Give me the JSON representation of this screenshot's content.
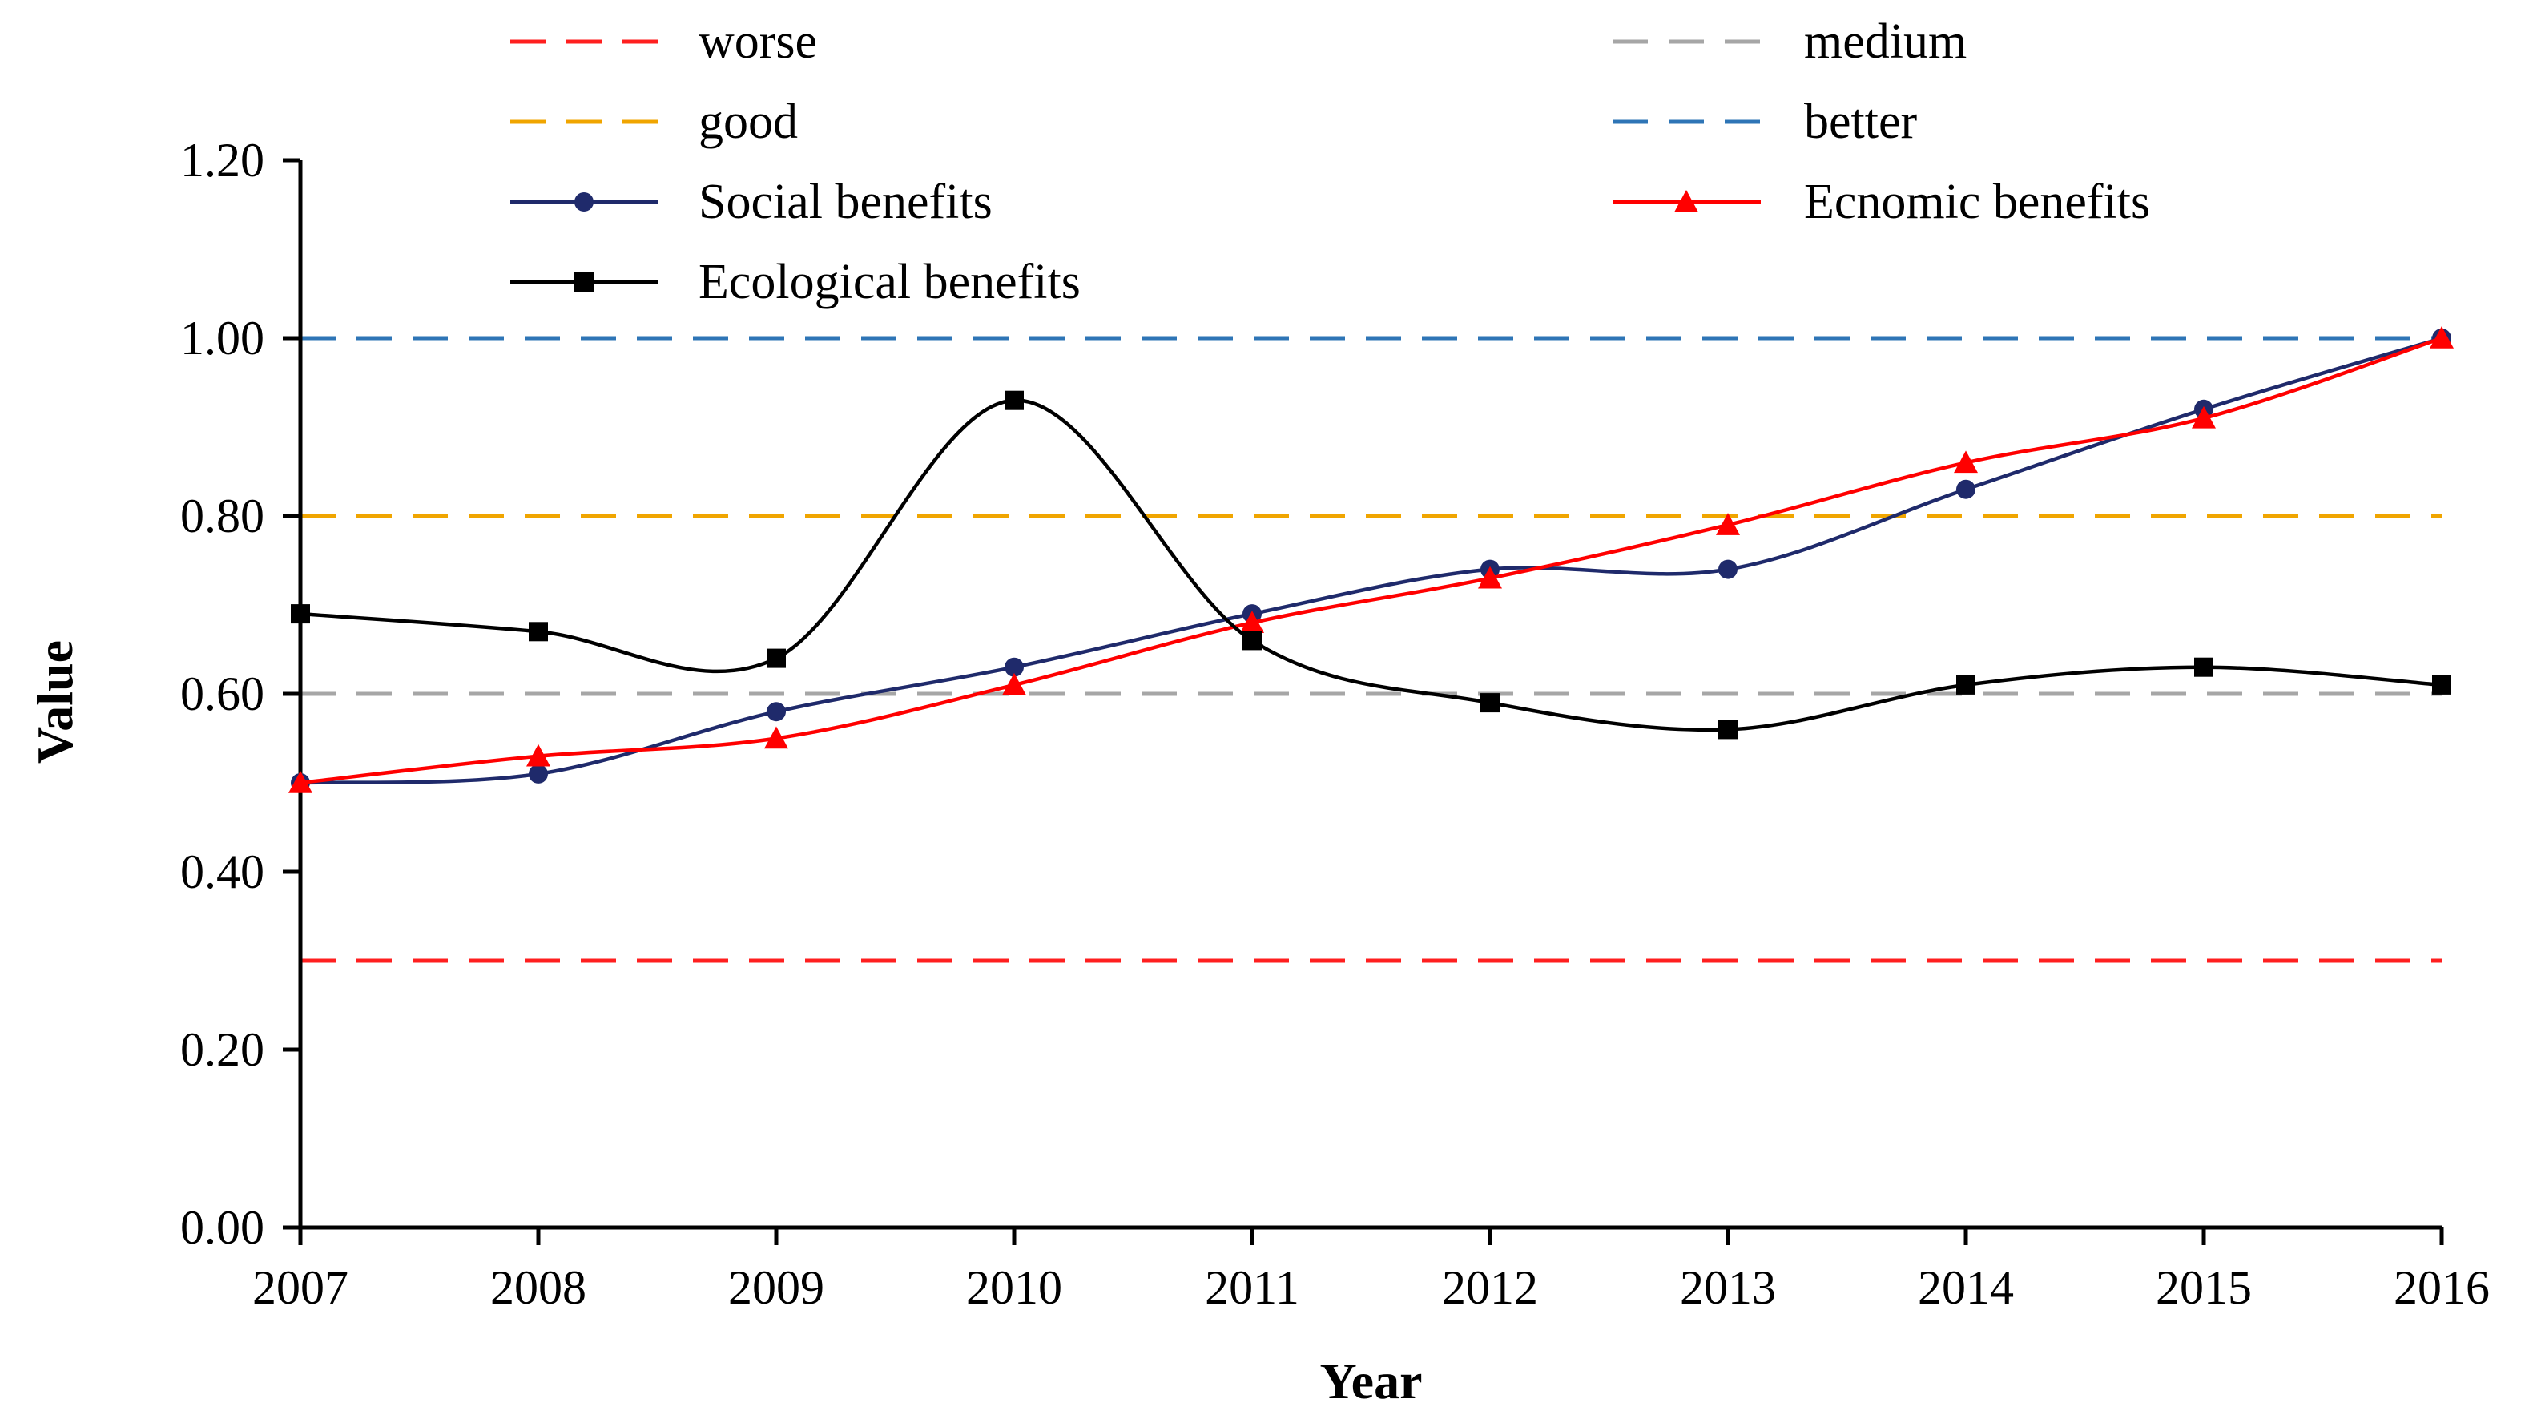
{
  "chart_data": {
    "type": "line",
    "title": "",
    "xlabel": "Year",
    "ylabel": "Value",
    "x": [
      "2007",
      "2008",
      "2009",
      "2010",
      "2011",
      "2012",
      "2013",
      "2014",
      "2015",
      "2016"
    ],
    "ylim": [
      0,
      1.2
    ],
    "yticks": [
      "0.00",
      "0.20",
      "0.40",
      "0.60",
      "0.80",
      "1.00",
      "1.20"
    ],
    "grid": false,
    "legend_position": "top",
    "reference_lines": [
      {
        "name": "worse",
        "value": 0.3,
        "color": "#ff1f1f"
      },
      {
        "name": "medium",
        "value": 0.6,
        "color": "#a6a6a6"
      },
      {
        "name": "good",
        "value": 0.8,
        "color": "#f0a500"
      },
      {
        "name": "better",
        "value": 1.0,
        "color": "#2e75b6"
      }
    ],
    "series": [
      {
        "name": "Social benefits",
        "color": "#1f2a6b",
        "marker": "circle",
        "values": [
          0.5,
          0.51,
          0.58,
          0.63,
          0.69,
          0.74,
          0.74,
          0.83,
          0.92,
          1.0
        ]
      },
      {
        "name": "Ecnomic benefits",
        "color": "#ff0000",
        "marker": "triangle",
        "values": [
          0.5,
          0.53,
          0.55,
          0.61,
          0.68,
          0.73,
          0.79,
          0.86,
          0.91,
          1.0
        ]
      },
      {
        "name": "Ecological benefits",
        "color": "#000000",
        "marker": "square",
        "values": [
          0.69,
          0.67,
          0.64,
          0.93,
          0.66,
          0.59,
          0.56,
          0.61,
          0.63,
          0.61
        ]
      }
    ]
  }
}
